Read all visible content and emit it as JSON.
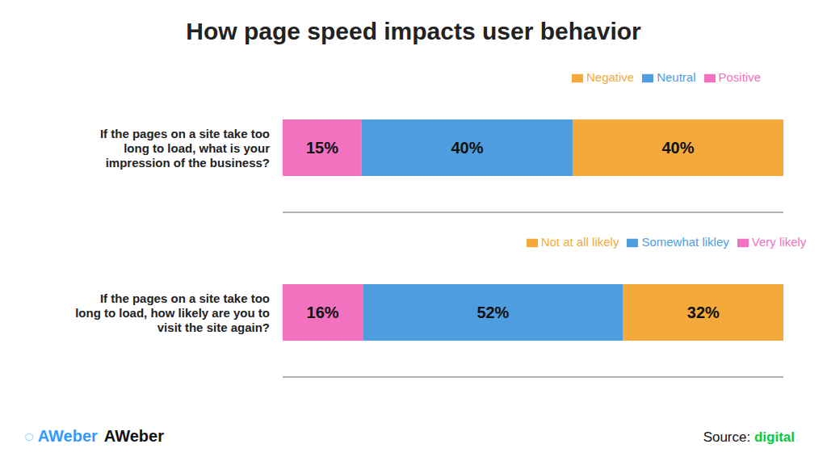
{
  "chart_data": [
    {
      "type": "bar",
      "title": "How page speed impacts user behavior",
      "orientation": "horizontal",
      "stacked": true,
      "data_labels": true,
      "tick_labels": "y",
      "legend": "top",
      "categories": [
        "If the pages on a site take too\nlong to load, what is your\nimpression of the business?"
      ],
      "xlim": [
        0,
        95
      ],
      "series": [
        {
          "name": "Positive",
          "color": "#f272c0",
          "values": [
            15
          ],
          "value_labels": [
            "15%"
          ]
        },
        {
          "name": "Neutral",
          "color": "#4d9de0",
          "values": [
            40
          ],
          "value_labels": [
            "40%"
          ]
        },
        {
          "name": "Negative",
          "color": "#f5a93a",
          "values": [
            40
          ],
          "value_labels": [
            "40%"
          ]
        }
      ]
    },
    {
      "type": "bar",
      "orientation": "horizontal",
      "stacked": true,
      "data_labels": true,
      "tick_labels": "y",
      "legend": "top",
      "categories": [
        "If the pages on a site take too\nlong to load, how likely are you to\nvisit the site again?"
      ],
      "xlim": [
        0,
        100
      ],
      "series": [
        {
          "name": "Very likely",
          "color": "#f272c0",
          "values": [
            16
          ],
          "value_labels": [
            "16%"
          ]
        },
        {
          "name": "Somewhat likley",
          "color": "#4d9de0",
          "values": [
            52
          ],
          "value_labels": [
            "52%"
          ]
        },
        {
          "name": "Not at all likely",
          "color": "#f5a93a",
          "values": [
            32
          ],
          "value_labels": [
            "32%"
          ]
        }
      ],
      "annotations": [
        {
          "text": "◌ AWeber",
          "color": "#3399ff"
        },
        {
          "text": "AWeber",
          "color": "#111111"
        },
        {
          "text": "Source: ",
          "color": "#111111"
        },
        {
          "text": "digital",
          "color": "#00cc44"
        }
      ]
    }
  ]
}
